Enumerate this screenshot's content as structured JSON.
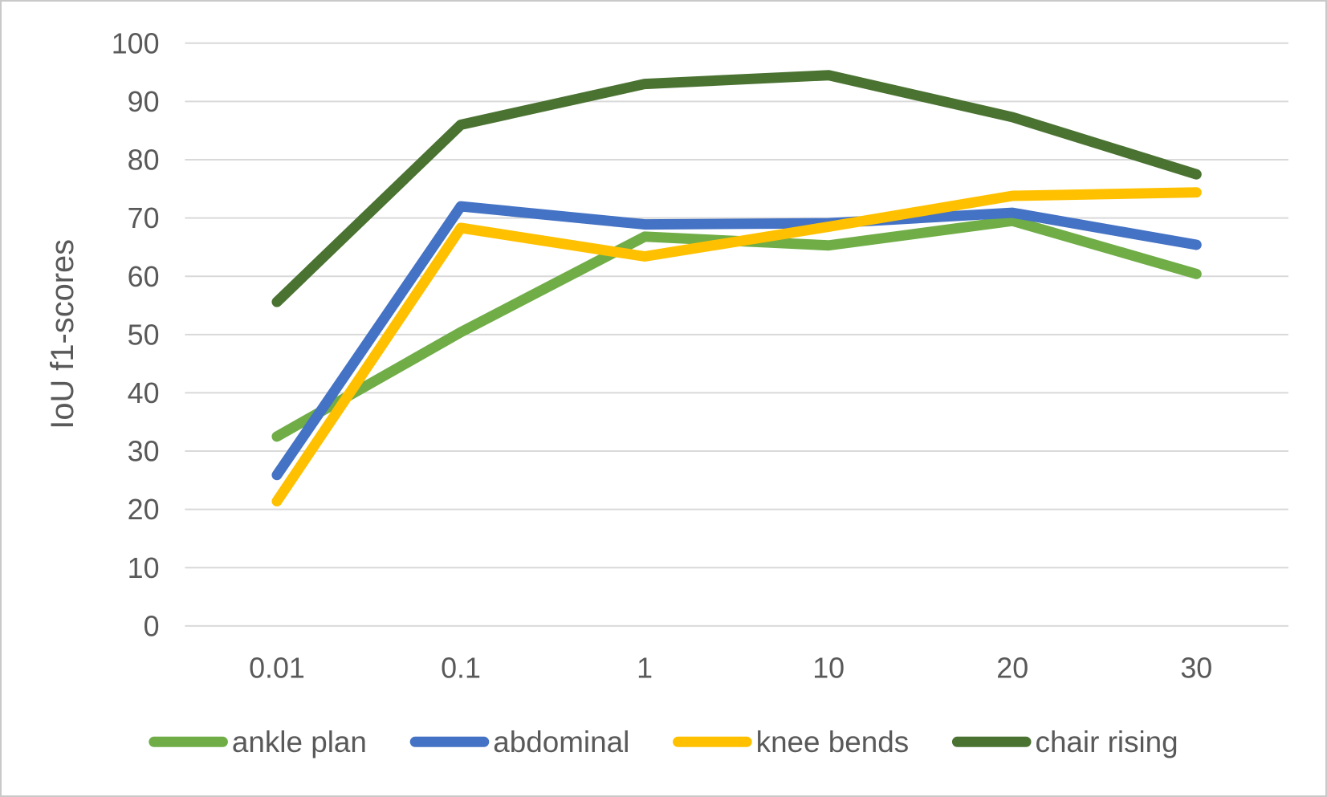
{
  "chart_data": {
    "type": "line",
    "title": "",
    "categories": [
      "0.01",
      "0.1",
      "1",
      "10",
      "20",
      "30"
    ],
    "series": [
      {
        "name": "ankle plan",
        "color": "#70AD47",
        "values": [
          32.5,
          50.4,
          66.8,
          65.3,
          69.5,
          60.4
        ]
      },
      {
        "name": "abdominal",
        "color": "#4472C4",
        "values": [
          25.9,
          72.0,
          68.9,
          69.1,
          70.9,
          65.4
        ]
      },
      {
        "name": "knee bends",
        "color": "#FFC000",
        "values": [
          21.4,
          68.3,
          63.4,
          68.5,
          73.8,
          74.4
        ]
      },
      {
        "name": "chair rising",
        "color": "#4A7231",
        "values": [
          55.6,
          86.0,
          93.0,
          94.5,
          87.3,
          77.5
        ]
      }
    ],
    "xlabel": "",
    "ylabel": "IoU f1-scores",
    "ylim": [
      0,
      100
    ],
    "y_tick_step": 10,
    "y_tick_labels": [
      "0",
      "10",
      "20",
      "30",
      "40",
      "50",
      "60",
      "70",
      "80",
      "90",
      "100"
    ],
    "grid": "horizontal",
    "legend_position": "bottom",
    "legend": [
      "ankle plan",
      "abdominal",
      "knee bends",
      "chair rising"
    ]
  },
  "styles": {
    "grid_color": "#D9D9D9",
    "text_color": "#595959",
    "border_color": "#C9C9C9",
    "background_color": "#FFFFFF"
  }
}
